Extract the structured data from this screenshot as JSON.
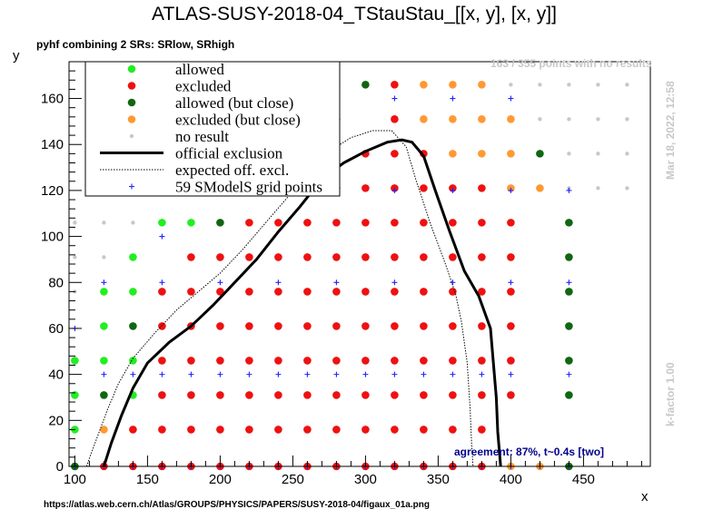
{
  "chart_data": {
    "type": "scatter",
    "title": "ATLAS-SUSY-2018-04_TStauStau_[[x, y], [x, y]]",
    "subtitle": "pyhf combining 2 SRs: SRlow, SRhigh",
    "xlabel": "x",
    "ylabel": "y",
    "xlim": [
      96,
      496
    ],
    "ylim": [
      0,
      176
    ],
    "x_ticks": [
      100,
      150,
      200,
      250,
      300,
      350,
      400,
      450
    ],
    "y_ticks": [
      0,
      20,
      40,
      60,
      80,
      100,
      120,
      140,
      160
    ],
    "grid": false,
    "legend_position": "top-left",
    "legend": [
      {
        "key": "allowed",
        "label": "allowed",
        "marker": "dot",
        "color": "#22ee22"
      },
      {
        "key": "excluded",
        "label": "excluded",
        "marker": "dot",
        "color": "#ee1111"
      },
      {
        "key": "allowed_close",
        "label": "allowed (but close)",
        "marker": "dot",
        "color": "#116611"
      },
      {
        "key": "excluded_close",
        "label": "excluded (but close)",
        "marker": "dot",
        "color": "#ff9933"
      },
      {
        "key": "no_result",
        "label": "no result",
        "marker": "smalldot",
        "color": "#c8c8c8"
      },
      {
        "key": "official",
        "label": "official exclusion",
        "marker": "line",
        "color": "#000000"
      },
      {
        "key": "expected",
        "label": "expected off. excl.",
        "marker": "dotted",
        "color": "#000000"
      },
      {
        "key": "grid_points",
        "label": "59 SModelS grid points",
        "marker": "plus",
        "color": "#2222ff"
      }
    ],
    "points": {
      "allowed": [
        [
          100,
          0
        ],
        [
          100,
          16
        ],
        [
          100,
          31
        ],
        [
          100,
          46
        ],
        [
          120,
          61
        ],
        [
          120,
          76
        ],
        [
          140,
          76
        ],
        [
          140,
          91
        ],
        [
          160,
          106
        ],
        [
          180,
          106
        ],
        [
          240,
          166
        ],
        [
          260,
          166
        ],
        [
          120,
          46
        ],
        [
          140,
          31
        ],
        [
          140,
          46
        ]
      ],
      "excluded": [
        [
          120,
          0
        ],
        [
          140,
          0
        ],
        [
          160,
          0
        ],
        [
          180,
          0
        ],
        [
          200,
          0
        ],
        [
          220,
          0
        ],
        [
          240,
          0
        ],
        [
          260,
          0
        ],
        [
          280,
          0
        ],
        [
          300,
          0
        ],
        [
          320,
          0
        ],
        [
          340,
          0
        ],
        [
          360,
          0
        ],
        [
          380,
          0
        ],
        [
          140,
          16
        ],
        [
          160,
          16
        ],
        [
          180,
          16
        ],
        [
          200,
          16
        ],
        [
          220,
          16
        ],
        [
          240,
          16
        ],
        [
          260,
          16
        ],
        [
          280,
          16
        ],
        [
          300,
          16
        ],
        [
          320,
          16
        ],
        [
          340,
          16
        ],
        [
          360,
          16
        ],
        [
          380,
          16
        ],
        [
          160,
          31
        ],
        [
          180,
          31
        ],
        [
          200,
          31
        ],
        [
          220,
          31
        ],
        [
          240,
          31
        ],
        [
          260,
          31
        ],
        [
          280,
          31
        ],
        [
          300,
          31
        ],
        [
          320,
          31
        ],
        [
          340,
          31
        ],
        [
          360,
          31
        ],
        [
          380,
          31
        ],
        [
          400,
          31
        ],
        [
          160,
          46
        ],
        [
          180,
          46
        ],
        [
          200,
          46
        ],
        [
          220,
          46
        ],
        [
          240,
          46
        ],
        [
          260,
          46
        ],
        [
          280,
          46
        ],
        [
          300,
          46
        ],
        [
          320,
          46
        ],
        [
          340,
          46
        ],
        [
          360,
          46
        ],
        [
          380,
          46
        ],
        [
          400,
          46
        ],
        [
          160,
          61
        ],
        [
          180,
          61
        ],
        [
          200,
          61
        ],
        [
          220,
          61
        ],
        [
          240,
          61
        ],
        [
          260,
          61
        ],
        [
          280,
          61
        ],
        [
          300,
          61
        ],
        [
          320,
          61
        ],
        [
          340,
          61
        ],
        [
          360,
          61
        ],
        [
          380,
          61
        ],
        [
          400,
          61
        ],
        [
          160,
          76
        ],
        [
          180,
          76
        ],
        [
          200,
          76
        ],
        [
          220,
          76
        ],
        [
          240,
          76
        ],
        [
          260,
          76
        ],
        [
          280,
          76
        ],
        [
          300,
          76
        ],
        [
          320,
          76
        ],
        [
          340,
          76
        ],
        [
          360,
          76
        ],
        [
          380,
          76
        ],
        [
          400,
          76
        ],
        [
          180,
          91
        ],
        [
          200,
          91
        ],
        [
          220,
          91
        ],
        [
          240,
          91
        ],
        [
          260,
          91
        ],
        [
          280,
          91
        ],
        [
          300,
          91
        ],
        [
          320,
          91
        ],
        [
          340,
          91
        ],
        [
          360,
          91
        ],
        [
          380,
          91
        ],
        [
          400,
          91
        ],
        [
          220,
          106
        ],
        [
          240,
          106
        ],
        [
          260,
          106
        ],
        [
          280,
          106
        ],
        [
          300,
          106
        ],
        [
          320,
          106
        ],
        [
          340,
          106
        ],
        [
          360,
          106
        ],
        [
          380,
          106
        ],
        [
          400,
          106
        ],
        [
          260,
          121
        ],
        [
          280,
          121
        ],
        [
          300,
          121
        ],
        [
          320,
          121
        ],
        [
          340,
          121
        ],
        [
          360,
          121
        ],
        [
          380,
          121
        ],
        [
          300,
          136
        ],
        [
          320,
          136
        ],
        [
          340,
          136
        ],
        [
          320,
          151
        ],
        [
          320,
          166
        ]
      ],
      "allowed_close": [
        [
          120,
          31
        ],
        [
          140,
          61
        ],
        [
          100,
          0
        ],
        [
          200,
          106
        ],
        [
          300,
          166
        ],
        [
          280,
          151
        ],
        [
          420,
          136
        ],
        [
          440,
          106
        ],
        [
          440,
          91
        ],
        [
          440,
          76
        ],
        [
          440,
          61
        ],
        [
          440,
          46
        ],
        [
          440,
          31
        ],
        [
          440,
          0
        ]
      ],
      "excluded_close": [
        [
          120,
          16
        ],
        [
          280,
          166
        ],
        [
          340,
          166
        ],
        [
          360,
          166
        ],
        [
          380,
          166
        ],
        [
          340,
          151
        ],
        [
          360,
          151
        ],
        [
          380,
          151
        ],
        [
          400,
          151
        ],
        [
          360,
          136
        ],
        [
          380,
          136
        ],
        [
          400,
          136
        ],
        [
          400,
          121
        ],
        [
          420,
          121
        ],
        [
          400,
          0
        ],
        [
          420,
          0
        ],
        [
          260,
          136
        ]
      ],
      "no_result": [
        [
          420,
          166
        ],
        [
          440,
          166
        ],
        [
          460,
          166
        ],
        [
          480,
          166
        ],
        [
          400,
          166
        ],
        [
          420,
          151
        ],
        [
          440,
          151
        ],
        [
          460,
          151
        ],
        [
          480,
          151
        ],
        [
          440,
          136
        ],
        [
          460,
          136
        ],
        [
          480,
          136
        ],
        [
          440,
          121
        ],
        [
          460,
          121
        ],
        [
          480,
          121
        ],
        [
          100,
          106
        ],
        [
          120,
          106
        ],
        [
          140,
          106
        ],
        [
          100,
          91
        ],
        [
          120,
          91
        ],
        [
          100,
          76
        ]
      ],
      "grid_points": [
        [
          100,
          0
        ],
        [
          120,
          0
        ],
        [
          140,
          0
        ],
        [
          160,
          0
        ],
        [
          180,
          0
        ],
        [
          200,
          0
        ],
        [
          220,
          0
        ],
        [
          240,
          0
        ],
        [
          260,
          0
        ],
        [
          280,
          0
        ],
        [
          300,
          0
        ],
        [
          320,
          0
        ],
        [
          340,
          0
        ],
        [
          360,
          0
        ],
        [
          380,
          0
        ],
        [
          400,
          0
        ],
        [
          420,
          0
        ],
        [
          440,
          0
        ],
        [
          120,
          40
        ],
        [
          140,
          40
        ],
        [
          160,
          40
        ],
        [
          180,
          40
        ],
        [
          200,
          40
        ],
        [
          220,
          40
        ],
        [
          240,
          40
        ],
        [
          260,
          40
        ],
        [
          280,
          40
        ],
        [
          300,
          40
        ],
        [
          320,
          40
        ],
        [
          340,
          40
        ],
        [
          360,
          40
        ],
        [
          380,
          40
        ],
        [
          400,
          40
        ],
        [
          440,
          40
        ],
        [
          100,
          60
        ],
        [
          120,
          80
        ],
        [
          160,
          80
        ],
        [
          200,
          80
        ],
        [
          240,
          80
        ],
        [
          280,
          80
        ],
        [
          320,
          80
        ],
        [
          360,
          80
        ],
        [
          400,
          80
        ],
        [
          440,
          80
        ],
        [
          160,
          100
        ],
        [
          320,
          120
        ],
        [
          360,
          120
        ],
        [
          400,
          120
        ],
        [
          440,
          120
        ],
        [
          200,
          160
        ],
        [
          240,
          160
        ],
        [
          280,
          160
        ],
        [
          320,
          160
        ],
        [
          360,
          160
        ],
        [
          400,
          160
        ],
        [
          240,
          120
        ],
        [
          280,
          120
        ],
        [
          200,
          120
        ],
        [
          160,
          120
        ]
      ]
    },
    "official_exclusion": [
      [
        120,
        0
      ],
      [
        125,
        10
      ],
      [
        132,
        22
      ],
      [
        140,
        34
      ],
      [
        150,
        45
      ],
      [
        165,
        54
      ],
      [
        180,
        61
      ],
      [
        195,
        70
      ],
      [
        210,
        80
      ],
      [
        225,
        90
      ],
      [
        240,
        102
      ],
      [
        255,
        113
      ],
      [
        270,
        125
      ],
      [
        285,
        132
      ],
      [
        300,
        137
      ],
      [
        315,
        141
      ],
      [
        325,
        142
      ],
      [
        332,
        141
      ],
      [
        340,
        135
      ],
      [
        348,
        120
      ],
      [
        358,
        102
      ],
      [
        368,
        85
      ],
      [
        378,
        74
      ],
      [
        386,
        60
      ],
      [
        388,
        45
      ],
      [
        390,
        30
      ],
      [
        391,
        15
      ],
      [
        393,
        0
      ]
    ],
    "expected_exclusion": [
      [
        108,
        0
      ],
      [
        115,
        12
      ],
      [
        122,
        24
      ],
      [
        130,
        36
      ],
      [
        140,
        47
      ],
      [
        155,
        58
      ],
      [
        170,
        68
      ],
      [
        185,
        76
      ],
      [
        200,
        84
      ],
      [
        215,
        94
      ],
      [
        230,
        105
      ],
      [
        245,
        116
      ],
      [
        260,
        127
      ],
      [
        275,
        137
      ],
      [
        290,
        143
      ],
      [
        305,
        146
      ],
      [
        318,
        146
      ],
      [
        328,
        139
      ],
      [
        335,
        124
      ],
      [
        345,
        105
      ],
      [
        355,
        88
      ],
      [
        362,
        75
      ],
      [
        366,
        63
      ],
      [
        370,
        45
      ],
      [
        372,
        25
      ],
      [
        373,
        10
      ],
      [
        374,
        0
      ]
    ]
  },
  "annotations": {
    "no_results_note": "163 / 355 points with no results",
    "timestamp": "Mar 18, 2022, 12:58",
    "kfactor": "k-factor 1.00",
    "agreement": "agreement: 87%, t~0.4s [two]",
    "source_url": "https://atlas.web.cern.ch/Atlas/GROUPS/PHYSICS/PAPERS/SUSY-2018-04/figaux_01a.png"
  }
}
